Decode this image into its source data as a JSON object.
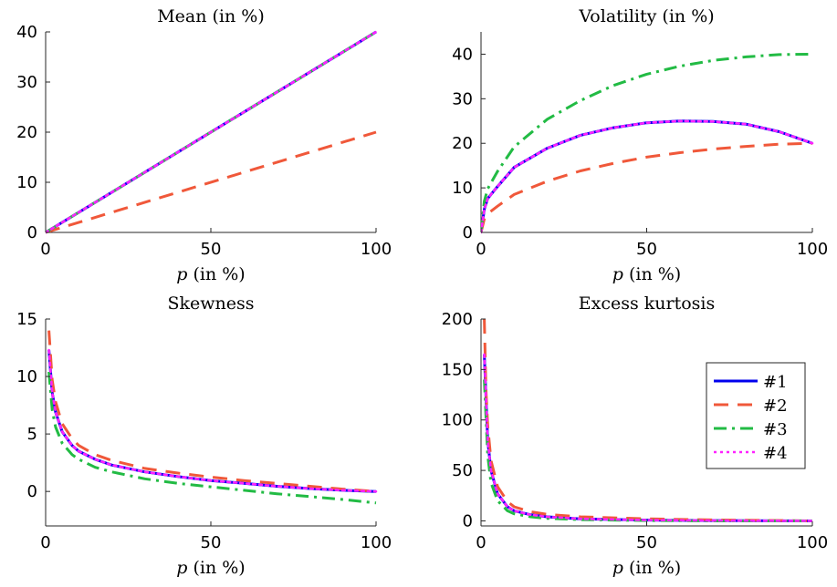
{
  "chart_data": [
    {
      "type": "line",
      "title": "Mean (in %)",
      "xlabel_var": "p",
      "xlabel_rest": " (in %)",
      "xlim": [
        0,
        100
      ],
      "ylim": [
        0,
        40
      ],
      "xticks": [
        0,
        50,
        100
      ],
      "yticks": [
        0,
        10,
        20,
        30,
        40
      ],
      "grid": false,
      "series": [
        {
          "name": "#1",
          "x": [
            0,
            100
          ],
          "y": [
            0,
            40
          ]
        },
        {
          "name": "#2",
          "x": [
            0,
            100
          ],
          "y": [
            0,
            20
          ]
        },
        {
          "name": "#3",
          "x": [
            0,
            100
          ],
          "y": [
            0,
            40
          ]
        },
        {
          "name": "#4",
          "x": [
            0,
            100
          ],
          "y": [
            0,
            40
          ]
        }
      ]
    },
    {
      "type": "line",
      "title": "Volatility (in %)",
      "xlabel_var": "p",
      "xlabel_rest": " (in %)",
      "xlim": [
        0,
        100
      ],
      "ylim": [
        0,
        45
      ],
      "xticks": [
        0,
        50,
        100
      ],
      "yticks": [
        0,
        10,
        20,
        30,
        40
      ],
      "grid": false,
      "series": [
        {
          "name": "#1",
          "x": [
            0,
            1,
            2,
            5,
            10,
            20,
            30,
            40,
            50,
            60,
            70,
            80,
            90,
            100
          ],
          "y": [
            0,
            5.2,
            7.6,
            10.3,
            14.6,
            18.9,
            21.8,
            23.5,
            24.6,
            25.0,
            24.9,
            24.3,
            22.6,
            20.0
          ]
        },
        {
          "name": "#2",
          "x": [
            0,
            1,
            2,
            5,
            10,
            20,
            30,
            40,
            50,
            60,
            70,
            80,
            90,
            100
          ],
          "y": [
            0,
            3.0,
            4.2,
            5.9,
            8.5,
            11.5,
            13.8,
            15.5,
            16.9,
            17.9,
            18.7,
            19.3,
            19.8,
            20.0
          ]
        },
        {
          "name": "#3",
          "x": [
            0,
            1,
            2,
            5,
            10,
            20,
            30,
            40,
            50,
            60,
            70,
            80,
            90,
            100
          ],
          "y": [
            0,
            7.0,
            9.8,
            13.7,
            19.2,
            25.4,
            29.6,
            33.0,
            35.5,
            37.3,
            38.6,
            39.4,
            39.9,
            40.0
          ]
        },
        {
          "name": "#4",
          "x": [
            0,
            1,
            2,
            5,
            10,
            20,
            30,
            40,
            50,
            60,
            70,
            80,
            90,
            100
          ],
          "y": [
            0,
            5.2,
            7.6,
            10.3,
            14.6,
            18.9,
            21.8,
            23.5,
            24.6,
            25.0,
            24.9,
            24.3,
            22.6,
            20.0
          ]
        }
      ]
    },
    {
      "type": "line",
      "title": "Skewness",
      "xlabel_var": "p",
      "xlabel_rest": " (in %)",
      "xlim": [
        0,
        100
      ],
      "ylim": [
        -3,
        15
      ],
      "xticks": [
        0,
        50,
        100
      ],
      "yticks": [
        0,
        5,
        10,
        15
      ],
      "grid": false,
      "series": [
        {
          "name": "#1",
          "x": [
            1,
            2,
            3,
            5,
            8,
            10,
            15,
            20,
            30,
            40,
            50,
            60,
            70,
            80,
            90,
            100
          ],
          "y": [
            12.3,
            8.6,
            6.9,
            5.2,
            4.0,
            3.5,
            2.8,
            2.3,
            1.7,
            1.3,
            0.95,
            0.7,
            0.45,
            0.25,
            0.1,
            0
          ]
        },
        {
          "name": "#2",
          "x": [
            1,
            2,
            3,
            5,
            8,
            10,
            15,
            20,
            30,
            40,
            50,
            60,
            70,
            80,
            90,
            100
          ],
          "y": [
            14.0,
            9.7,
            7.8,
            5.9,
            4.6,
            4.0,
            3.2,
            2.7,
            2.0,
            1.6,
            1.25,
            0.95,
            0.7,
            0.45,
            0.2,
            0
          ]
        },
        {
          "name": "#3",
          "x": [
            1,
            2,
            3,
            5,
            8,
            10,
            15,
            20,
            30,
            40,
            50,
            60,
            70,
            80,
            90,
            100
          ],
          "y": [
            10.4,
            7.1,
            5.6,
            4.2,
            3.2,
            2.8,
            2.1,
            1.7,
            1.1,
            0.7,
            0.4,
            0.1,
            -0.2,
            -0.45,
            -0.7,
            -1.0
          ]
        },
        {
          "name": "#4",
          "x": [
            1,
            2,
            3,
            5,
            8,
            10,
            15,
            20,
            30,
            40,
            50,
            60,
            70,
            80,
            90,
            100
          ],
          "y": [
            12.3,
            8.6,
            6.9,
            5.2,
            4.0,
            3.5,
            2.8,
            2.3,
            1.7,
            1.3,
            0.95,
            0.7,
            0.45,
            0.25,
            0.1,
            0
          ]
        }
      ]
    },
    {
      "type": "line",
      "title": "Excess kurtosis",
      "xlabel_var": "p",
      "xlabel_rest": " (in %)",
      "xlim": [
        0,
        100
      ],
      "ylim": [
        -5,
        200
      ],
      "xticks": [
        0,
        50,
        100
      ],
      "yticks": [
        0,
        50,
        100,
        150,
        200
      ],
      "grid": false,
      "legend": "right",
      "series": [
        {
          "name": "#1",
          "x": [
            1,
            2,
            3,
            5,
            8,
            10,
            15,
            20,
            30,
            50,
            70,
            100
          ],
          "y": [
            165,
            80,
            50,
            27,
            14,
            10,
            6,
            4,
            2,
            0.8,
            0.3,
            0
          ]
        },
        {
          "name": "#2",
          "x": [
            1,
            1.5,
            2,
            3,
            5,
            8,
            10,
            15,
            20,
            30,
            50,
            70,
            100
          ],
          "y": [
            200,
            130,
            95,
            60,
            34,
            19,
            14,
            9,
            6.5,
            4,
            2,
            1,
            0
          ]
        },
        {
          "name": "#3",
          "x": [
            1,
            2,
            3,
            5,
            8,
            10,
            15,
            20,
            30,
            50,
            70,
            100
          ],
          "y": [
            140,
            65,
            38,
            20,
            10,
            7,
            4,
            2.5,
            1.2,
            0.3,
            0,
            0
          ]
        },
        {
          "name": "#4",
          "x": [
            1,
            2,
            3,
            5,
            8,
            10,
            15,
            20,
            30,
            50,
            70,
            100
          ],
          "y": [
            165,
            80,
            50,
            27,
            14,
            10,
            6,
            4,
            2,
            0.8,
            0.3,
            0
          ]
        }
      ]
    }
  ],
  "series_styles": [
    {
      "name": "#1",
      "color": "#0000ee",
      "dash": "solid"
    },
    {
      "name": "#2",
      "color": "#f0583a",
      "dash": "dashed"
    },
    {
      "name": "#3",
      "color": "#22bb44",
      "dash": "dashdot"
    },
    {
      "name": "#4",
      "color": "#ff22ff",
      "dash": "dotted"
    }
  ]
}
